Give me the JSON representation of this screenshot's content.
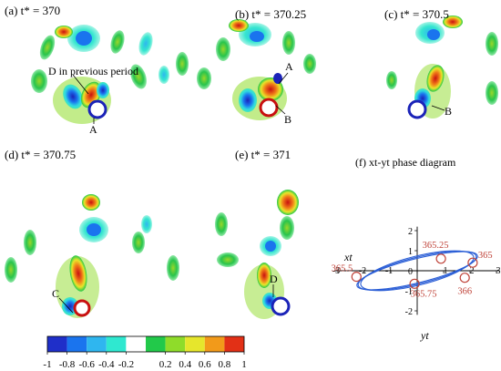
{
  "panels": [
    {
      "label": "(a) t* = 370"
    },
    {
      "label": "(b) t* = 370.25"
    },
    {
      "label": "(c) t* = 370.5"
    },
    {
      "label": "(d) t* = 370.75"
    },
    {
      "label": "(e) t* = 371"
    },
    {
      "label": "(f) xt-yt phase diagram"
    }
  ],
  "annotations": {
    "a_prev": "D in previous period",
    "a_A": "A",
    "b_A": "A",
    "b_B": "B",
    "c_B": "B",
    "d_C": "C",
    "e_D": "D"
  },
  "colorbar": {
    "ticks": [
      "-1",
      "-0.8",
      "-0.6",
      "-0.4",
      "-0.2",
      "0.2",
      "0.4",
      "0.6",
      "0.8",
      "1"
    ],
    "colors": [
      "#1f2fc9",
      "#1a74ee",
      "#2fb6ef",
      "#2fe8d0",
      "#ffffff",
      "#22c94a",
      "#8fdc2a",
      "#e6e62c",
      "#f29a1a",
      "#e23016"
    ]
  },
  "phase": {
    "xlabel": "xt",
    "ylabel": "yt",
    "xticks": [
      "-3",
      "-2",
      "-1",
      "0",
      "1",
      "2",
      "3"
    ],
    "yticks": [
      "2",
      "1",
      "0",
      "-1",
      "-2"
    ],
    "points": [
      {
        "label": "365.25",
        "x": 0.9,
        "y": 0.6
      },
      {
        "label": "365",
        "x": 2.1,
        "y": 0.4
      },
      {
        "label": "365.5",
        "x": -2.3,
        "y": -0.3
      },
      {
        "label": "366",
        "x": 1.8,
        "y": -0.35
      },
      {
        "label": "365.75",
        "x": -0.1,
        "y": -0.65
      }
    ],
    "orbit_color": "#2c5fd6",
    "marker_color": "#c0443a"
  }
}
